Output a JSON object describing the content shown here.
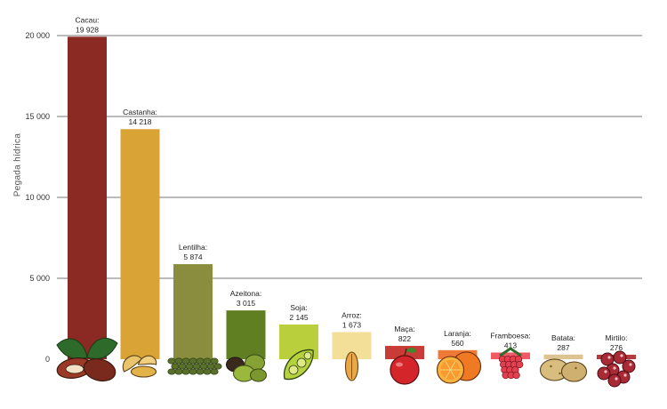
{
  "chart_data": {
    "type": "bar",
    "title": "",
    "xlabel": "",
    "ylabel": "Pegada hídrica",
    "ylim": [
      0,
      20000
    ],
    "yticks": [
      0,
      5000,
      10000,
      15000,
      20000
    ],
    "ytick_labels": [
      "0",
      "5 000",
      "10 000",
      "15 000",
      "20 000"
    ],
    "grid": true,
    "categories": [
      "Cacau",
      "Castanha",
      "Lentilha",
      "Azeitona",
      "Soja",
      "Arroz",
      "Maça",
      "Laranja",
      "Framboesa",
      "Batata",
      "Mirtilo"
    ],
    "values": [
      19928,
      14218,
      5874,
      3015,
      2145,
      1673,
      822,
      560,
      413,
      287,
      276
    ],
    "category_labels": [
      "Cacau:",
      "Castanha:",
      "Lentilha:",
      "Azeitona:",
      "Soja:",
      "Arroz:",
      "Maça:",
      "Laranja:",
      "Framboesa:",
      "Batata:",
      "Mirtilo:"
    ],
    "value_labels": [
      "19 928",
      "14 218",
      "5 874",
      "3 015",
      "2 145",
      "1 673",
      "822",
      "560",
      "413",
      "287",
      "276"
    ],
    "colors": [
      "#8b2a22",
      "#d9a336",
      "#8a8c3e",
      "#5f7f22",
      "#b9cf3c",
      "#f3df97",
      "#c93b36",
      "#ef7a38",
      "#f05a65",
      "#dcc38f",
      "#b63a3a"
    ],
    "icons": [
      "cacao-icon",
      "cashew-icon",
      "lentil-icon",
      "olive-icon",
      "soy-icon",
      "rice-icon",
      "apple-icon",
      "orange-icon",
      "raspberry-icon",
      "potato-icon",
      "blueberry-icon"
    ]
  }
}
